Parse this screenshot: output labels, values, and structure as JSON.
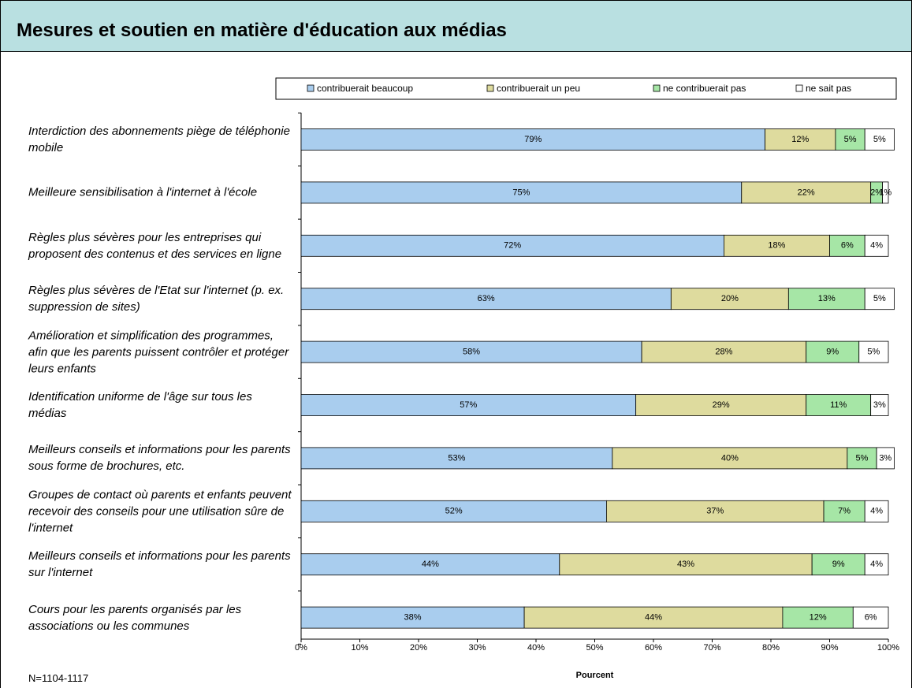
{
  "chart_data": {
    "type": "stacked-bar-horizontal",
    "title": "Mesures et soutien en matière d'éducation aux médias",
    "xlabel": "Pourcent",
    "note": "N=1104-1117",
    "categories": [
      "Interdiction des abonnements piège de téléphonie mobile",
      "Meilleure sensibilisation à l'internet à l'école",
      "Règles plus sévères pour les entreprises qui proposent des contenus et des services en ligne",
      "Règles plus sévères de l'Etat sur l'internet (p. ex. suppression de sites)",
      "Amélioration et simplification des programmes, afin que les parents puissent contrôler et protéger leurs enfants",
      "Identification uniforme de l'âge sur tous les médias",
      "Meilleurs conseils et informations pour les parents sous forme de brochures, etc.",
      "Groupes de contact où parents et enfants peuvent recevoir des conseils pour une utilisation sûre de l'internet",
      "Meilleurs conseils et informations pour les parents sur l'internet",
      "Cours pour les parents organisés par les associations ou les communes"
    ],
    "series": [
      {
        "name": "contribuerait beaucoup",
        "color": "#a9cdee",
        "values": [
          79,
          75,
          72,
          63,
          58,
          57,
          53,
          52,
          44,
          38
        ],
        "value_labels": [
          "79%",
          "75%",
          "72%",
          "63%",
          "58%",
          "57%",
          "53%",
          "52%",
          "44%",
          "38%"
        ]
      },
      {
        "name": "contribuerait un peu",
        "color": "#dedb9e",
        "values": [
          12,
          22,
          18,
          20,
          28,
          29,
          40,
          37,
          43,
          44
        ],
        "value_labels": [
          "12%",
          "22%",
          "18%",
          "20%",
          "28%",
          "29%",
          "40%",
          "37%",
          "43%",
          "44%"
        ]
      },
      {
        "name": "ne contribuerait pas",
        "color": "#a6e6a6",
        "values": [
          5,
          2,
          6,
          13,
          9,
          11,
          5,
          7,
          9,
          12
        ],
        "value_labels": [
          "5%",
          "2%",
          "6%",
          "13%",
          "9%",
          "11%",
          "5%",
          "7%",
          "9%",
          "12%"
        ]
      },
      {
        "name": "ne sait pas",
        "color": "#ffffff",
        "values": [
          5,
          1,
          4,
          5,
          5,
          3,
          3,
          4,
          4,
          6
        ],
        "value_labels": [
          "5%",
          "1%",
          "4%",
          "5%",
          "5%",
          "3%",
          "3%",
          "4%",
          "4%",
          "6%"
        ]
      }
    ],
    "xlim": [
      0,
      100
    ],
    "xticks": [
      {
        "value": 0,
        "label": "0%"
      },
      {
        "value": 10,
        "label": "10%"
      },
      {
        "value": 20,
        "label": "20%"
      },
      {
        "value": 30,
        "label": "30%"
      },
      {
        "value": 40,
        "label": "40%"
      },
      {
        "value": 50,
        "label": "50%"
      },
      {
        "value": 60,
        "label": "60%"
      },
      {
        "value": 70,
        "label": "70%"
      },
      {
        "value": 80,
        "label": "80%"
      },
      {
        "value": 90,
        "label": "90%"
      },
      {
        "value": 100,
        "label": "100%"
      }
    ],
    "legend": "top"
  }
}
